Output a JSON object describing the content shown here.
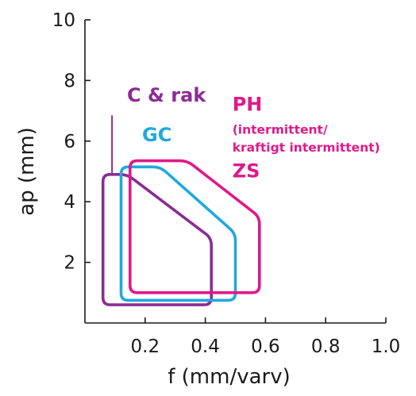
{
  "chart_data": {
    "type": "area",
    "title": "",
    "xlabel": "f (mm/varv)",
    "ylabel": "ap (mm)",
    "xlim": [
      0,
      1.0
    ],
    "ylim": [
      0,
      10
    ],
    "x_ticks": [
      "0.2",
      "0.4",
      "0.6",
      "0.8",
      "1.0"
    ],
    "x_tick_values": [
      0.2,
      0.4,
      0.6,
      0.8,
      1.0
    ],
    "y_ticks": [
      "2",
      "4",
      "6",
      "8",
      "10"
    ],
    "y_tick_values": [
      2,
      4,
      6,
      8,
      10
    ],
    "grid": false,
    "series": [
      {
        "name": "C & rak",
        "color": "#8B2C94",
        "points": [
          [
            0.06,
            4.9
          ],
          [
            0.14,
            4.9
          ],
          [
            0.42,
            2.8
          ],
          [
            0.42,
            0.6
          ],
          [
            0.06,
            0.6
          ]
        ]
      },
      {
        "name": "GC",
        "color": "#1FA9DE",
        "points": [
          [
            0.12,
            5.15
          ],
          [
            0.25,
            5.15
          ],
          [
            0.5,
            2.95
          ],
          [
            0.5,
            0.75
          ],
          [
            0.12,
            0.75
          ]
        ]
      },
      {
        "name": "PH (intermittent/ kraftigt intermittent) ZS",
        "color": "#E0198A",
        "points": [
          [
            0.15,
            5.35
          ],
          [
            0.34,
            5.35
          ],
          [
            0.58,
            3.5
          ],
          [
            0.58,
            1.0
          ],
          [
            0.15,
            1.0
          ]
        ]
      }
    ],
    "annotations": [
      {
        "text": "C & rak",
        "color": "#8B2C94",
        "size": "big",
        "x": 0.14,
        "y": 7.3
      },
      {
        "text": "GC",
        "color": "#1FA9DE",
        "size": "big",
        "x": 0.19,
        "y": 6.0
      },
      {
        "text": "PH",
        "color": "#E0198A",
        "size": "big",
        "x": 0.49,
        "y": 7.0
      },
      {
        "text": "(intermittent/",
        "color": "#E0198A",
        "size": "small",
        "x": 0.49,
        "y": 6.25
      },
      {
        "text": "kraftigt intermittent)",
        "color": "#E0198A",
        "size": "small",
        "x": 0.49,
        "y": 5.65
      },
      {
        "text": "ZS",
        "color": "#E0198A",
        "size": "big",
        "x": 0.49,
        "y": 4.8
      }
    ],
    "leaders": [
      {
        "series": "C & rak",
        "from": [
          0.09,
          6.85
        ],
        "to": [
          0.09,
          4.9
        ]
      }
    ]
  }
}
